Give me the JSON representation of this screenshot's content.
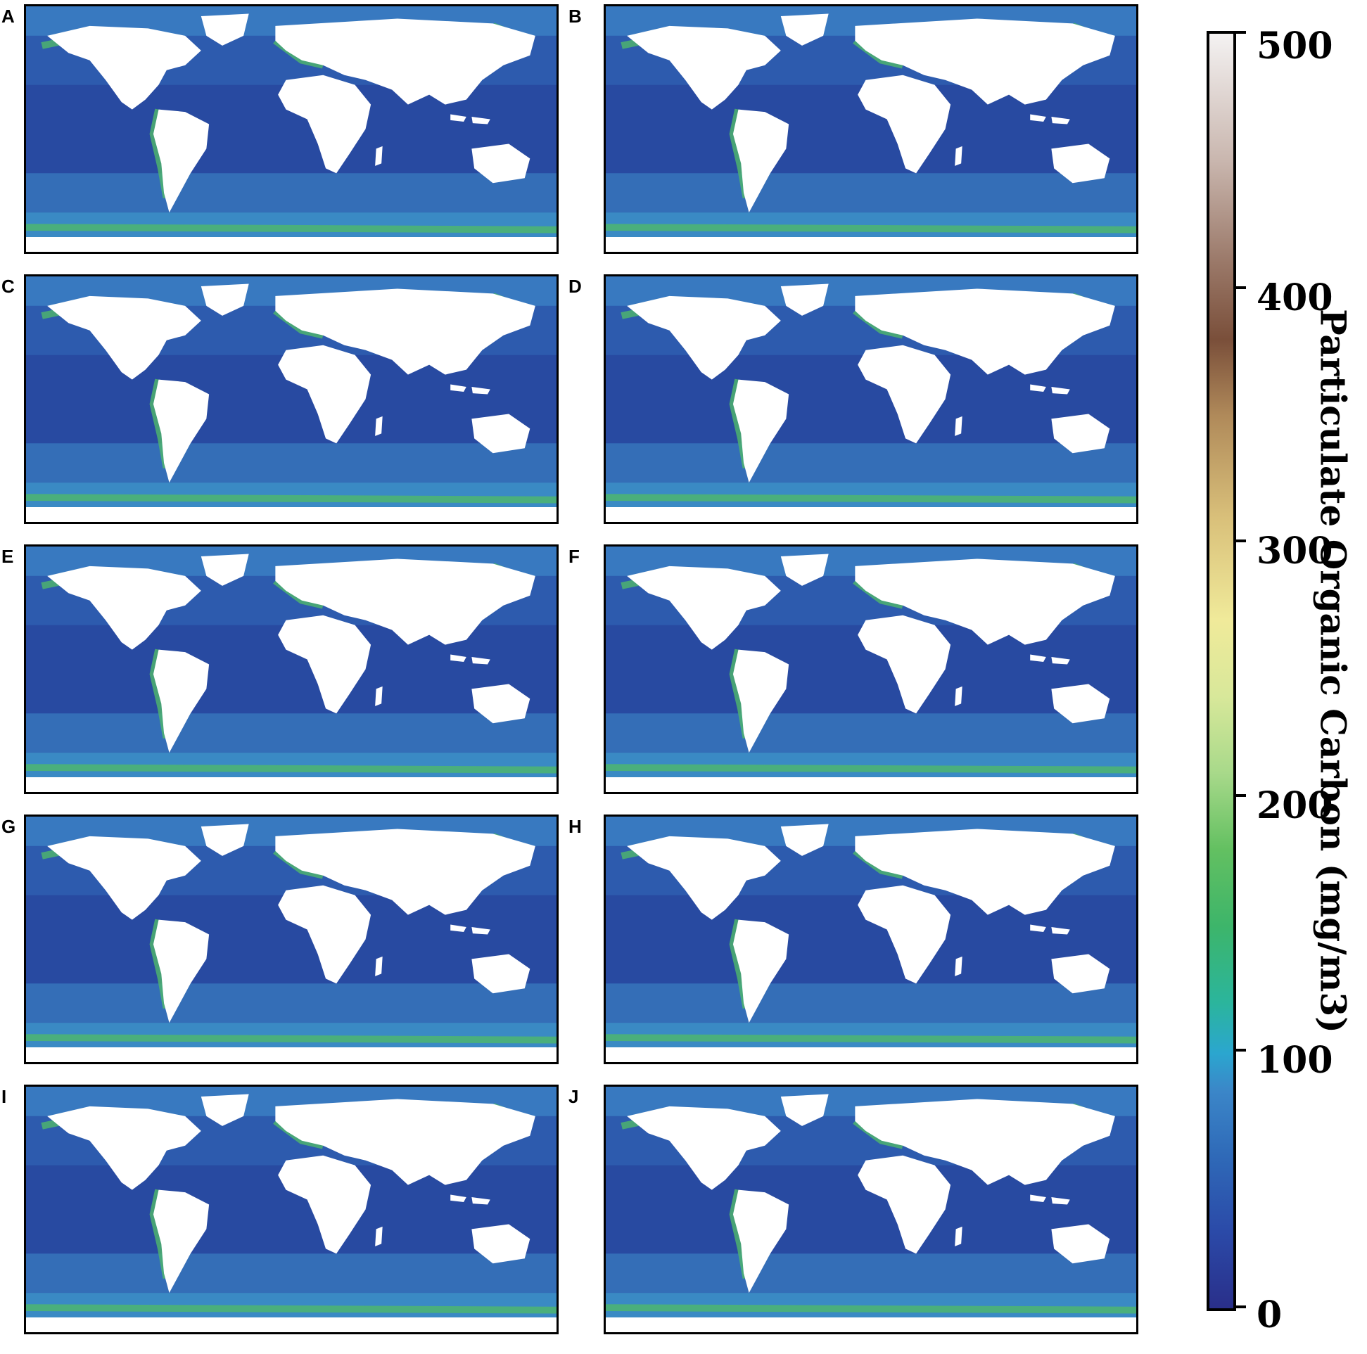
{
  "panels": [
    {
      "label": "A"
    },
    {
      "label": "B"
    },
    {
      "label": "C"
    },
    {
      "label": "D"
    },
    {
      "label": "E"
    },
    {
      "label": "F"
    },
    {
      "label": "G"
    },
    {
      "label": "H"
    },
    {
      "label": "I"
    },
    {
      "label": "J"
    }
  ],
  "colorbar": {
    "label": "Particulate Organic Carbon (mg/m3)",
    "ticks": [
      "500",
      "400",
      "300",
      "200",
      "100",
      "0"
    ],
    "range": [
      0,
      500
    ],
    "colors": {
      "low": "#2a2f8a",
      "mid_blue": "#2f6ab8",
      "cyan": "#2ba6cf",
      "green": "#3db56a",
      "yellow": "#f0ea9a",
      "brown": "#7a4f3a",
      "high": "#f4f2f2"
    }
  },
  "map": {
    "land_color": "#ffffff",
    "ocean_color": "#2f5fb0",
    "coastal_color": "#4fb86a"
  }
}
